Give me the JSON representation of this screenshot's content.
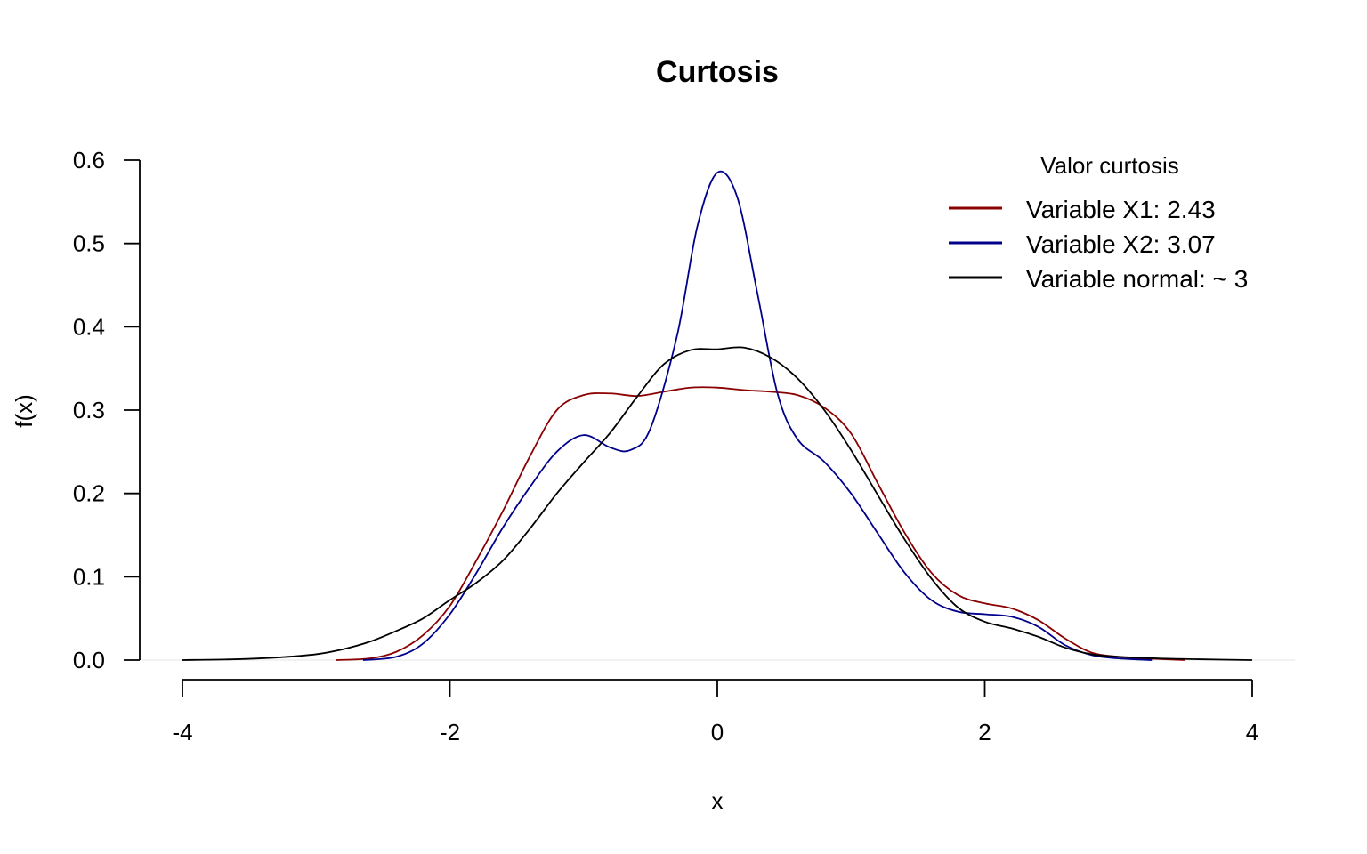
{
  "chart_data": {
    "type": "line",
    "title": "Curtosis",
    "xlabel": "x",
    "ylabel": "f(x)",
    "xlim": [
      -4,
      4
    ],
    "ylim": [
      0,
      0.6
    ],
    "x_ticks": [
      -4,
      -2,
      0,
      2,
      4
    ],
    "y_ticks": [
      0.0,
      0.1,
      0.2,
      0.3,
      0.4,
      0.5,
      0.6
    ],
    "x_tick_labels": [
      "-4",
      "-2",
      "0",
      "2",
      "4"
    ],
    "y_tick_labels": [
      "0.0",
      "0.1",
      "0.2",
      "0.3",
      "0.4",
      "0.5",
      "0.6"
    ],
    "grid": false,
    "baseline_color": "#eeeeee",
    "legend": {
      "title": "Valor curtosis",
      "position": "top-right"
    },
    "series": [
      {
        "name": "Variable X1: 2.43",
        "color": "#8b0000",
        "points": [
          [
            -2.85,
            0.0
          ],
          [
            -2.6,
            0.002
          ],
          [
            -2.4,
            0.01
          ],
          [
            -2.2,
            0.03
          ],
          [
            -2.0,
            0.065
          ],
          [
            -1.8,
            0.12
          ],
          [
            -1.6,
            0.18
          ],
          [
            -1.4,
            0.245
          ],
          [
            -1.2,
            0.3
          ],
          [
            -1.0,
            0.318
          ],
          [
            -0.8,
            0.32
          ],
          [
            -0.6,
            0.317
          ],
          [
            -0.4,
            0.322
          ],
          [
            -0.2,
            0.327
          ],
          [
            0.0,
            0.327
          ],
          [
            0.2,
            0.324
          ],
          [
            0.4,
            0.322
          ],
          [
            0.6,
            0.318
          ],
          [
            0.8,
            0.303
          ],
          [
            1.0,
            0.272
          ],
          [
            1.2,
            0.212
          ],
          [
            1.4,
            0.153
          ],
          [
            1.6,
            0.105
          ],
          [
            1.8,
            0.078
          ],
          [
            2.0,
            0.068
          ],
          [
            2.2,
            0.062
          ],
          [
            2.4,
            0.048
          ],
          [
            2.6,
            0.026
          ],
          [
            2.8,
            0.009
          ],
          [
            3.0,
            0.004
          ],
          [
            3.2,
            0.002
          ],
          [
            3.5,
            0.0
          ]
        ]
      },
      {
        "name": "Variable X2: 3.07",
        "color": "#00008b",
        "points": [
          [
            -2.65,
            0.0
          ],
          [
            -2.4,
            0.004
          ],
          [
            -2.2,
            0.02
          ],
          [
            -2.0,
            0.055
          ],
          [
            -1.8,
            0.105
          ],
          [
            -1.6,
            0.16
          ],
          [
            -1.4,
            0.208
          ],
          [
            -1.2,
            0.25
          ],
          [
            -1.0,
            0.27
          ],
          [
            -0.8,
            0.255
          ],
          [
            -0.65,
            0.252
          ],
          [
            -0.5,
            0.278
          ],
          [
            -0.3,
            0.39
          ],
          [
            -0.15,
            0.52
          ],
          [
            0.0,
            0.585
          ],
          [
            0.15,
            0.555
          ],
          [
            0.3,
            0.44
          ],
          [
            0.45,
            0.32
          ],
          [
            0.6,
            0.265
          ],
          [
            0.8,
            0.238
          ],
          [
            1.0,
            0.2
          ],
          [
            1.2,
            0.152
          ],
          [
            1.4,
            0.105
          ],
          [
            1.6,
            0.072
          ],
          [
            1.8,
            0.058
          ],
          [
            2.0,
            0.055
          ],
          [
            2.2,
            0.052
          ],
          [
            2.4,
            0.04
          ],
          [
            2.6,
            0.018
          ],
          [
            2.8,
            0.006
          ],
          [
            3.0,
            0.002
          ],
          [
            3.25,
            0.0
          ]
        ]
      },
      {
        "name": "Variable normal: ~ 3",
        "color": "#000000",
        "points": [
          [
            -4.0,
            0.0
          ],
          [
            -3.6,
            0.001
          ],
          [
            -3.3,
            0.003
          ],
          [
            -3.0,
            0.007
          ],
          [
            -2.8,
            0.013
          ],
          [
            -2.6,
            0.022
          ],
          [
            -2.4,
            0.035
          ],
          [
            -2.2,
            0.05
          ],
          [
            -2.0,
            0.072
          ],
          [
            -1.8,
            0.093
          ],
          [
            -1.6,
            0.12
          ],
          [
            -1.4,
            0.158
          ],
          [
            -1.2,
            0.2
          ],
          [
            -1.0,
            0.237
          ],
          [
            -0.8,
            0.273
          ],
          [
            -0.6,
            0.316
          ],
          [
            -0.4,
            0.355
          ],
          [
            -0.2,
            0.372
          ],
          [
            0.0,
            0.373
          ],
          [
            0.2,
            0.375
          ],
          [
            0.4,
            0.363
          ],
          [
            0.6,
            0.338
          ],
          [
            0.8,
            0.3
          ],
          [
            1.0,
            0.252
          ],
          [
            1.2,
            0.198
          ],
          [
            1.4,
            0.145
          ],
          [
            1.6,
            0.098
          ],
          [
            1.8,
            0.063
          ],
          [
            2.0,
            0.046
          ],
          [
            2.2,
            0.038
          ],
          [
            2.4,
            0.028
          ],
          [
            2.6,
            0.015
          ],
          [
            2.8,
            0.007
          ],
          [
            3.0,
            0.004
          ],
          [
            3.3,
            0.002
          ],
          [
            3.6,
            0.001
          ],
          [
            4.0,
            0.0
          ]
        ]
      }
    ]
  }
}
